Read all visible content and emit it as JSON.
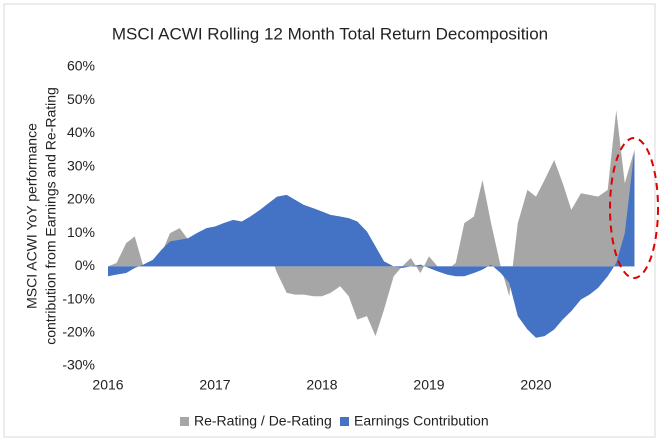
{
  "chart_data": {
    "type": "area",
    "title": "MSCI ACWI Rolling 12 Month Total Return Decomposition",
    "ylabel": [
      "MSCI ACWI YoY performance",
      "contribution from Earnings and Re-Rating"
    ],
    "x": [
      2016,
      2016.08,
      2016.17,
      2016.25,
      2016.33,
      2016.42,
      2016.5,
      2016.58,
      2016.67,
      2016.75,
      2016.83,
      2016.92,
      2017,
      2017.08,
      2017.17,
      2017.25,
      2017.33,
      2017.42,
      2017.5,
      2017.58,
      2017.67,
      2017.75,
      2017.83,
      2017.92,
      2018,
      2018.08,
      2018.17,
      2018.25,
      2018.33,
      2018.42,
      2018.5,
      2018.58,
      2018.67,
      2018.75,
      2018.83,
      2018.92,
      2019,
      2019.08,
      2019.17,
      2019.25,
      2019.33,
      2019.42,
      2019.5,
      2019.58,
      2019.67,
      2019.75,
      2019.83,
      2019.92,
      2020,
      2020.08,
      2020.17,
      2020.25,
      2020.33,
      2020.42,
      2020.5,
      2020.58,
      2020.67,
      2020.75,
      2020.83,
      2020.92
    ],
    "series": [
      {
        "name": "Re-Rating / De-Rating",
        "color": "#a6a6a6",
        "values": [
          0,
          1,
          7,
          9,
          0,
          1,
          4,
          10,
          11.5,
          8,
          9,
          10,
          11,
          12,
          12.5,
          13,
          12,
          10,
          5,
          -2,
          -8,
          -8.5,
          -8.5,
          -9,
          -9,
          -8,
          -6,
          -9,
          -16,
          -15,
          -21,
          -13,
          -3,
          0,
          2.5,
          -2,
          3,
          0,
          -1,
          1,
          13,
          15,
          26,
          13,
          0,
          -9,
          13,
          23,
          21,
          26,
          32,
          25,
          17,
          22,
          21.5,
          21,
          23,
          47,
          25,
          35
        ]
      },
      {
        "name": "Earnings Contribution",
        "color": "#4472c4",
        "values": [
          -3,
          -2.5,
          -2,
          -0.5,
          0.5,
          2,
          5,
          7.5,
          8,
          8.5,
          10,
          11.5,
          12,
          13,
          14,
          13.5,
          15,
          17,
          19,
          21,
          21.5,
          20,
          18.5,
          17.5,
          16.5,
          15.5,
          15,
          14.5,
          13.5,
          10.5,
          6,
          1.5,
          0,
          -0.5,
          0,
          0.5,
          -0.5,
          -1.5,
          -2.5,
          -3,
          -3,
          -2,
          -1,
          0.5,
          -2,
          -5,
          -15,
          -19,
          -21.5,
          -21,
          -19,
          -16,
          -13.5,
          -10,
          -8.5,
          -6.5,
          -3,
          1,
          10,
          35
        ]
      }
    ],
    "xlim": [
      2016,
      2021
    ],
    "xticks": [
      2016,
      2017,
      2018,
      2019,
      2020
    ],
    "ylim": [
      -30,
      60
    ],
    "yticks": [
      {
        "value": 60,
        "label": "60%"
      },
      {
        "value": 50,
        "label": "50%"
      },
      {
        "value": 40,
        "label": "40%"
      },
      {
        "value": 30,
        "label": "30%"
      },
      {
        "value": 20,
        "label": "20%"
      },
      {
        "value": 10,
        "label": "10%"
      },
      {
        "value": 0,
        "label": "0%"
      },
      {
        "value": -10,
        "label": "-10%"
      },
      {
        "value": -20,
        "label": "-20%"
      },
      {
        "value": -30,
        "label": "-30%"
      }
    ],
    "grid": false,
    "legend": "bottom"
  }
}
